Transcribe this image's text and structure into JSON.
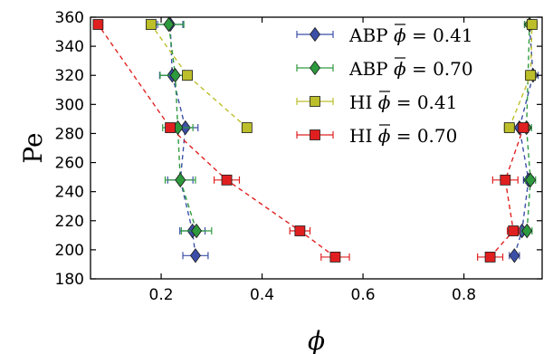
{
  "chart_data": {
    "type": "scatter",
    "title": "",
    "xlabel": "ϕ",
    "ylabel": "Pe",
    "xlim": [
      0.06,
      0.955
    ],
    "ylim": [
      180,
      360
    ],
    "xticks": [
      0.2,
      0.4,
      0.6,
      0.8
    ],
    "yticks": [
      180,
      200,
      220,
      240,
      260,
      280,
      300,
      320,
      340,
      360
    ],
    "grid": false,
    "legend_position": "top-center",
    "series": [
      {
        "name": "ABP ϕ̄ = 0.41",
        "legend_label_parts": {
          "prefix": "ABP ",
          "symbol": "ϕ",
          "value": "= 0.41"
        },
        "marker": "diamond",
        "color": "#3b4fa8",
        "line_color": "#3b4fa8",
        "branches": [
          [
            {
              "x": 0.268,
              "y": 196,
              "xerr": 0.025
            },
            {
              "x": 0.262,
              "y": 213,
              "xerr": 0.025
            },
            {
              "x": 0.238,
              "y": 248,
              "xerr": 0.025
            },
            {
              "x": 0.248,
              "y": 284,
              "xerr": 0.025
            },
            {
              "x": 0.222,
              "y": 320,
              "xerr": 0.025
            },
            {
              "x": 0.218,
              "y": 355,
              "xerr": 0.025
            }
          ],
          [
            {
              "x": 0.9,
              "y": 196,
              "xerr": 0.01
            },
            {
              "x": 0.915,
              "y": 213,
              "xerr": 0.01
            },
            {
              "x": 0.928,
              "y": 248,
              "xerr": 0.01
            },
            {
              "x": 0.91,
              "y": 284,
              "xerr": 0.01
            },
            {
              "x": 0.937,
              "y": 320,
              "xerr": 0.01
            },
            {
              "x": 0.93,
              "y": 355,
              "xerr": 0.01
            }
          ]
        ]
      },
      {
        "name": "ABP ϕ̄ = 0.70",
        "legend_label_parts": {
          "prefix": "ABP ",
          "symbol": "ϕ",
          "value": "= 0.70"
        },
        "marker": "diamond",
        "color": "#2e9a3e",
        "line_color": "#2e9a3e",
        "branches": [
          [
            {
              "x": 0.27,
              "y": 213,
              "xerr": 0.03
            },
            {
              "x": 0.238,
              "y": 248,
              "xerr": 0.03
            },
            {
              "x": 0.233,
              "y": 284,
              "xerr": 0.03
            },
            {
              "x": 0.228,
              "y": 320,
              "xerr": 0.03
            },
            {
              "x": 0.215,
              "y": 355,
              "xerr": 0.03
            }
          ],
          [
            {
              "x": 0.925,
              "y": 213,
              "xerr": 0.01
            },
            {
              "x": 0.932,
              "y": 248,
              "xerr": 0.01
            },
            {
              "x": 0.924,
              "y": 284,
              "xerr": 0.01
            },
            {
              "x": 0.93,
              "y": 355,
              "xerr": 0.01
            }
          ]
        ]
      },
      {
        "name": "HI ϕ̄ = 0.41",
        "legend_label_parts": {
          "prefix": "HI ",
          "symbol": "ϕ",
          "value": "= 0.41"
        },
        "marker": "square",
        "color": "#bcbf2a",
        "line_color": "#bcbf2a",
        "branches": [
          [
            {
              "x": 0.37,
              "y": 284,
              "xerr": 0
            },
            {
              "x": 0.252,
              "y": 320,
              "xerr": 0
            },
            {
              "x": 0.18,
              "y": 355,
              "xerr": 0
            }
          ],
          [
            {
              "x": 0.89,
              "y": 284,
              "xerr": 0.01
            },
            {
              "x": 0.932,
              "y": 320,
              "xerr": 0.01
            },
            {
              "x": 0.935,
              "y": 355,
              "xerr": 0.01
            }
          ]
        ]
      },
      {
        "name": "HI ϕ̄ = 0.70",
        "legend_label_parts": {
          "prefix": "HI ",
          "symbol": "ϕ",
          "value": "= 0.70"
        },
        "marker": "square",
        "color": "#e02020",
        "line_color": "#e02020",
        "branches": [
          [
            {
              "x": 0.545,
              "y": 195,
              "xerr": 0.028
            },
            {
              "x": 0.475,
              "y": 213,
              "xerr": 0.02
            },
            {
              "x": 0.33,
              "y": 248,
              "xerr": 0.025
            },
            {
              "x": 0.218,
              "y": 284,
              "xerr": 0
            },
            {
              "x": 0.075,
              "y": 355,
              "xerr": 0
            }
          ],
          [
            {
              "x": 0.852,
              "y": 195,
              "xerr": 0.025
            },
            {
              "x": 0.898,
              "y": 213,
              "xerr": 0.012
            },
            {
              "x": 0.882,
              "y": 248,
              "xerr": 0.025
            },
            {
              "x": 0.918,
              "y": 284,
              "xerr": 0.01
            }
          ]
        ]
      }
    ]
  }
}
